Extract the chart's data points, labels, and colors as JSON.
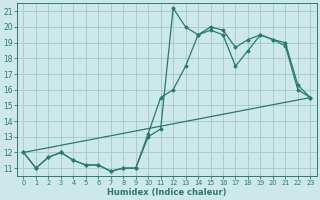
{
  "xlabel": "Humidex (Indice chaleur)",
  "bg_color": "#cce8e8",
  "grid_color": "#aacccc",
  "line_color": "#2a7a70",
  "xlim": [
    -0.5,
    23.5
  ],
  "ylim": [
    10.5,
    21.5
  ],
  "xticks": [
    0,
    1,
    2,
    3,
    4,
    5,
    6,
    7,
    8,
    9,
    10,
    11,
    12,
    13,
    14,
    15,
    16,
    17,
    18,
    19,
    20,
    21,
    22,
    23
  ],
  "yticks": [
    11,
    12,
    13,
    14,
    15,
    16,
    17,
    18,
    19,
    20,
    21
  ],
  "line1_x": [
    0,
    1,
    2,
    3,
    4,
    5,
    6,
    7,
    8,
    9,
    10,
    11,
    12,
    13,
    14,
    15,
    16,
    17,
    18,
    19,
    20,
    21,
    22,
    23
  ],
  "line1_y": [
    12,
    11,
    11.7,
    12,
    11.5,
    11.2,
    11.2,
    10.8,
    11,
    11,
    13,
    13.5,
    21.2,
    20,
    19.5,
    19.8,
    19.5,
    17.5,
    18.5,
    19.5,
    19.2,
    19,
    16.3,
    15.5
  ],
  "line2_x": [
    0,
    1,
    2,
    3,
    4,
    5,
    6,
    7,
    8,
    9,
    10,
    11,
    12,
    13,
    14,
    15,
    16,
    17,
    18,
    19,
    20,
    21,
    22,
    23
  ],
  "line2_y": [
    12,
    11,
    11.7,
    12,
    11.5,
    11.2,
    11.2,
    10.8,
    11,
    11,
    13.2,
    15.5,
    16.0,
    17.5,
    19.5,
    20.0,
    19.8,
    18.7,
    19.2,
    19.5,
    19.2,
    18.8,
    16.0,
    15.5
  ],
  "line3_x": [
    0,
    23
  ],
  "line3_y": [
    12,
    15.5
  ]
}
